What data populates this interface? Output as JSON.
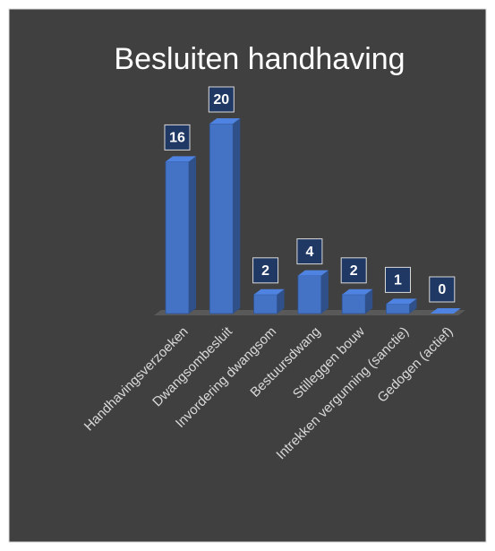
{
  "chart_data": {
    "type": "bar3d",
    "title": "Besluiten handhaving",
    "categories": [
      "Handhavingsverzoeken",
      "Dwangsombesluit",
      "Invordering dwangsom",
      "Bestuursdwang",
      "Stilleggen bouw",
      "Intrekken vergunning (sanctie)",
      "Gedogen (actief)"
    ],
    "values": [
      16,
      20,
      2,
      4,
      2,
      1,
      0
    ],
    "color": "#4472c4",
    "background": "#404040"
  }
}
